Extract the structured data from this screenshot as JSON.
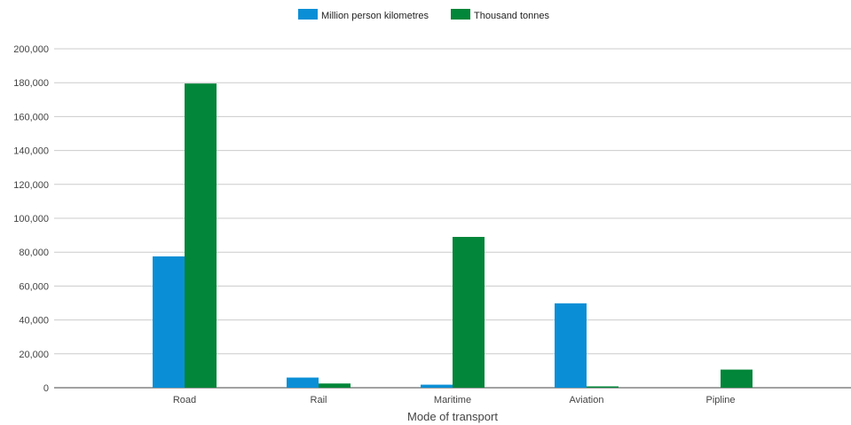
{
  "chart_data": {
    "type": "bar",
    "title": "",
    "xlabel": "Mode of transport",
    "ylabel": "",
    "categories": [
      "Road",
      "Rail",
      "Maritime",
      "Aviation",
      "Pipline"
    ],
    "series": [
      {
        "name": "Million person kilometres",
        "color": "#0a8fd6",
        "values": [
          77500,
          6000,
          1800,
          49800,
          0
        ]
      },
      {
        "name": "Thousand tonnes",
        "color": "#028639",
        "values": [
          179500,
          2500,
          89000,
          800,
          10700
        ]
      }
    ],
    "ylim": [
      0,
      200000
    ],
    "yticks": [
      "0",
      "20,000",
      "40,000",
      "60,000",
      "80,000",
      "100,000",
      "120,000",
      "140,000",
      "160,000",
      "180,000",
      "200,000"
    ],
    "grid": true,
    "legend_position": "top-center"
  }
}
